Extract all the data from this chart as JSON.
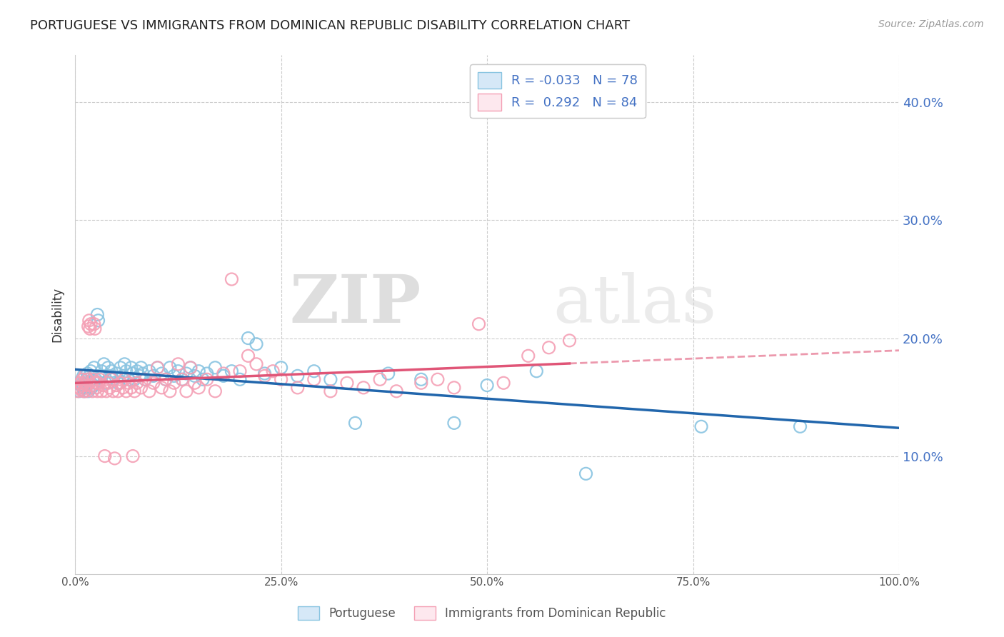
{
  "title": "PORTUGUESE VS IMMIGRANTS FROM DOMINICAN REPUBLIC DISABILITY CORRELATION CHART",
  "source": "Source: ZipAtlas.com",
  "ylabel": "Disability",
  "legend_blue_r": "-0.033",
  "legend_blue_n": "78",
  "legend_pink_r": "0.292",
  "legend_pink_n": "84",
  "legend_blue_label": "Portuguese",
  "legend_pink_label": "Immigrants from Dominican Republic",
  "blue_color": "#89c4e1",
  "pink_color": "#f4a0b5",
  "trendline_blue": "#2166ac",
  "trendline_pink": "#e05577",
  "blue_scatter": [
    [
      0.005,
      0.155
    ],
    [
      0.007,
      0.16
    ],
    [
      0.008,
      0.165
    ],
    [
      0.009,
      0.158
    ],
    [
      0.01,
      0.16
    ],
    [
      0.01,
      0.168
    ],
    [
      0.011,
      0.155
    ],
    [
      0.012,
      0.162
    ],
    [
      0.013,
      0.158
    ],
    [
      0.014,
      0.165
    ],
    [
      0.015,
      0.17
    ],
    [
      0.016,
      0.155
    ],
    [
      0.017,
      0.162
    ],
    [
      0.018,
      0.168
    ],
    [
      0.019,
      0.172
    ],
    [
      0.02,
      0.158
    ],
    [
      0.021,
      0.165
    ],
    [
      0.022,
      0.16
    ],
    [
      0.023,
      0.175
    ],
    [
      0.025,
      0.165
    ],
    [
      0.027,
      0.22
    ],
    [
      0.028,
      0.215
    ],
    [
      0.03,
      0.168
    ],
    [
      0.032,
      0.172
    ],
    [
      0.035,
      0.178
    ],
    [
      0.037,
      0.162
    ],
    [
      0.04,
      0.175
    ],
    [
      0.042,
      0.168
    ],
    [
      0.044,
      0.172
    ],
    [
      0.046,
      0.165
    ],
    [
      0.05,
      0.17
    ],
    [
      0.052,
      0.162
    ],
    [
      0.055,
      0.175
    ],
    [
      0.058,
      0.168
    ],
    [
      0.06,
      0.178
    ],
    [
      0.062,
      0.172
    ],
    [
      0.065,
      0.165
    ],
    [
      0.068,
      0.175
    ],
    [
      0.07,
      0.17
    ],
    [
      0.072,
      0.165
    ],
    [
      0.075,
      0.172
    ],
    [
      0.078,
      0.168
    ],
    [
      0.08,
      0.175
    ],
    [
      0.082,
      0.17
    ],
    [
      0.085,
      0.165
    ],
    [
      0.09,
      0.172
    ],
    [
      0.095,
      0.168
    ],
    [
      0.1,
      0.175
    ],
    [
      0.105,
      0.17
    ],
    [
      0.11,
      0.165
    ],
    [
      0.115,
      0.175
    ],
    [
      0.12,
      0.168
    ],
    [
      0.125,
      0.172
    ],
    [
      0.13,
      0.165
    ],
    [
      0.135,
      0.17
    ],
    [
      0.14,
      0.175
    ],
    [
      0.145,
      0.168
    ],
    [
      0.15,
      0.172
    ],
    [
      0.155,
      0.165
    ],
    [
      0.16,
      0.17
    ],
    [
      0.17,
      0.175
    ],
    [
      0.18,
      0.168
    ],
    [
      0.19,
      0.172
    ],
    [
      0.2,
      0.165
    ],
    [
      0.21,
      0.2
    ],
    [
      0.22,
      0.195
    ],
    [
      0.23,
      0.17
    ],
    [
      0.25,
      0.175
    ],
    [
      0.27,
      0.168
    ],
    [
      0.29,
      0.172
    ],
    [
      0.31,
      0.165
    ],
    [
      0.34,
      0.128
    ],
    [
      0.38,
      0.17
    ],
    [
      0.42,
      0.165
    ],
    [
      0.46,
      0.128
    ],
    [
      0.5,
      0.16
    ],
    [
      0.56,
      0.172
    ],
    [
      0.62,
      0.085
    ],
    [
      0.76,
      0.125
    ],
    [
      0.88,
      0.125
    ]
  ],
  "pink_scatter": [
    [
      0.003,
      0.155
    ],
    [
      0.005,
      0.158
    ],
    [
      0.006,
      0.162
    ],
    [
      0.007,
      0.156
    ],
    [
      0.008,
      0.16
    ],
    [
      0.009,
      0.165
    ],
    [
      0.01,
      0.155
    ],
    [
      0.011,
      0.162
    ],
    [
      0.012,
      0.168
    ],
    [
      0.013,
      0.155
    ],
    [
      0.014,
      0.16
    ],
    [
      0.015,
      0.165
    ],
    [
      0.016,
      0.21
    ],
    [
      0.017,
      0.215
    ],
    [
      0.018,
      0.208
    ],
    [
      0.019,
      0.212
    ],
    [
      0.02,
      0.16
    ],
    [
      0.021,
      0.155
    ],
    [
      0.022,
      0.165
    ],
    [
      0.023,
      0.212
    ],
    [
      0.024,
      0.208
    ],
    [
      0.025,
      0.162
    ],
    [
      0.026,
      0.158
    ],
    [
      0.027,
      0.155
    ],
    [
      0.028,
      0.162
    ],
    [
      0.03,
      0.165
    ],
    [
      0.032,
      0.155
    ],
    [
      0.034,
      0.16
    ],
    [
      0.036,
      0.1
    ],
    [
      0.038,
      0.155
    ],
    [
      0.04,
      0.162
    ],
    [
      0.042,
      0.158
    ],
    [
      0.044,
      0.165
    ],
    [
      0.046,
      0.155
    ],
    [
      0.048,
      0.098
    ],
    [
      0.05,
      0.16
    ],
    [
      0.052,
      0.155
    ],
    [
      0.055,
      0.162
    ],
    [
      0.058,
      0.158
    ],
    [
      0.06,
      0.165
    ],
    [
      0.062,
      0.155
    ],
    [
      0.065,
      0.162
    ],
    [
      0.068,
      0.158
    ],
    [
      0.07,
      0.1
    ],
    [
      0.072,
      0.155
    ],
    [
      0.075,
      0.162
    ],
    [
      0.08,
      0.158
    ],
    [
      0.085,
      0.165
    ],
    [
      0.09,
      0.155
    ],
    [
      0.095,
      0.162
    ],
    [
      0.1,
      0.175
    ],
    [
      0.105,
      0.158
    ],
    [
      0.11,
      0.165
    ],
    [
      0.115,
      0.155
    ],
    [
      0.12,
      0.162
    ],
    [
      0.125,
      0.178
    ],
    [
      0.13,
      0.165
    ],
    [
      0.135,
      0.155
    ],
    [
      0.14,
      0.175
    ],
    [
      0.145,
      0.162
    ],
    [
      0.15,
      0.158
    ],
    [
      0.16,
      0.165
    ],
    [
      0.17,
      0.155
    ],
    [
      0.18,
      0.17
    ],
    [
      0.19,
      0.25
    ],
    [
      0.2,
      0.172
    ],
    [
      0.21,
      0.185
    ],
    [
      0.22,
      0.178
    ],
    [
      0.23,
      0.168
    ],
    [
      0.24,
      0.172
    ],
    [
      0.25,
      0.165
    ],
    [
      0.27,
      0.158
    ],
    [
      0.29,
      0.165
    ],
    [
      0.31,
      0.155
    ],
    [
      0.33,
      0.162
    ],
    [
      0.35,
      0.158
    ],
    [
      0.37,
      0.165
    ],
    [
      0.39,
      0.155
    ],
    [
      0.42,
      0.162
    ],
    [
      0.44,
      0.165
    ],
    [
      0.46,
      0.158
    ],
    [
      0.49,
      0.212
    ],
    [
      0.52,
      0.162
    ],
    [
      0.55,
      0.185
    ],
    [
      0.575,
      0.192
    ],
    [
      0.6,
      0.198
    ]
  ],
  "xmin": 0.0,
  "xmax": 1.0,
  "ymin": 0.0,
  "ymax": 0.44,
  "ytick_vals": [
    0.1,
    0.2,
    0.3,
    0.4
  ],
  "ytick_labels": [
    "10.0%",
    "20.0%",
    "30.0%",
    "40.0%"
  ],
  "xtick_vals": [
    0.0,
    0.25,
    0.5,
    0.75,
    1.0
  ],
  "xtick_labels": [
    "0.0%",
    "25.0%",
    "50.0%",
    "75.0%",
    "100.0%"
  ],
  "watermark_zip": "ZIP",
  "watermark_atlas": "atlas",
  "background_color": "#ffffff"
}
